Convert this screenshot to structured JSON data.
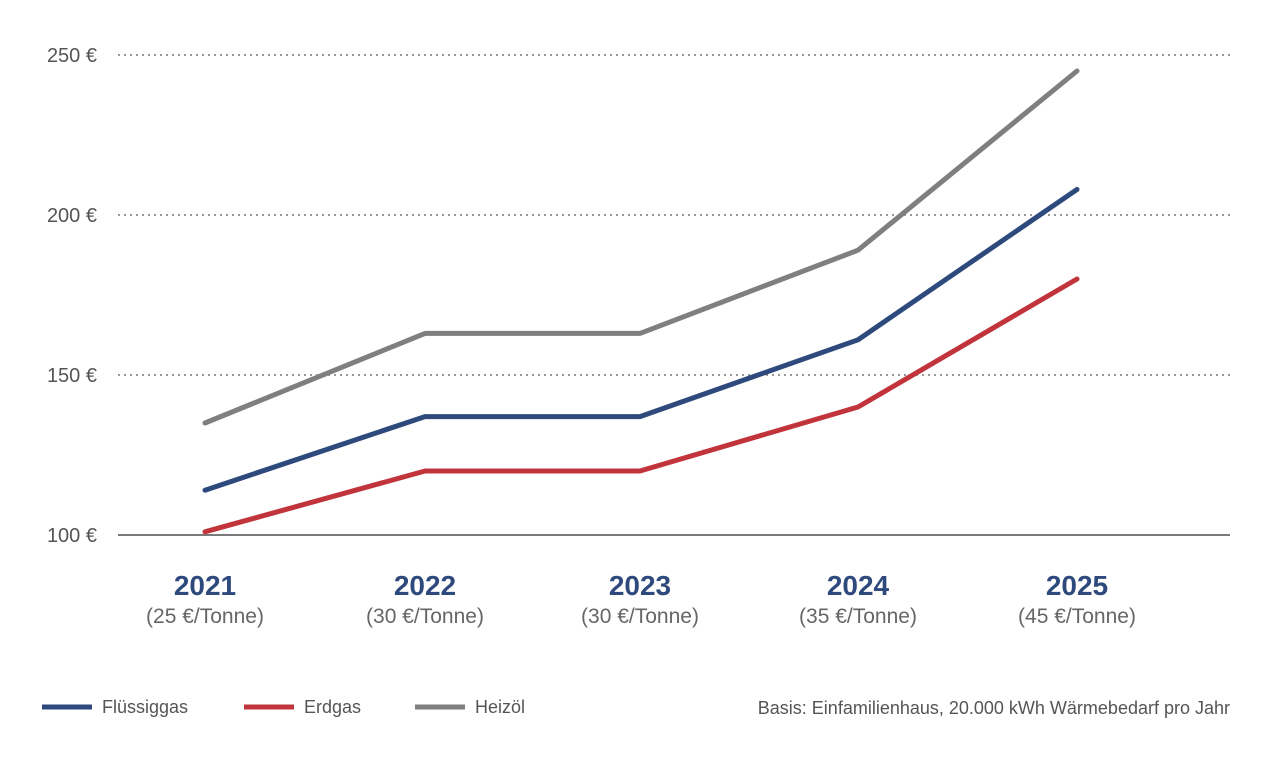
{
  "chart_data": {
    "type": "line",
    "title": "",
    "xlabel": "",
    "ylabel": "",
    "categories": [
      "2021",
      "2022",
      "2023",
      "2024",
      "2025"
    ],
    "category_sublabels": [
      "(25 €/Tonne)",
      "(30 €/Tonne)",
      "(30 €/Tonne)",
      "(35 €/Tonne)",
      "(45 €/Tonne)"
    ],
    "ylim": [
      100,
      250
    ],
    "yticks": [
      100,
      150,
      200,
      250
    ],
    "ytick_labels": [
      "100 €",
      "150 €",
      "200 €",
      "250 €"
    ],
    "grid": "horizontal dotted",
    "legend_position": "bottom-left",
    "series": [
      {
        "name": "Flüssiggas",
        "color": "#2e4a7c",
        "values": [
          114,
          137,
          137,
          161,
          208
        ]
      },
      {
        "name": "Erdgas",
        "color": "#c1343b",
        "values": [
          101,
          120,
          120,
          140,
          180
        ]
      },
      {
        "name": "Heizöl",
        "color": "#7f7f7f",
        "values": [
          135,
          163,
          163,
          189,
          245
        ]
      }
    ],
    "note": "Basis: Einfamilienhaus, 20.000 kWh Wärmebedarf pro Jahr"
  }
}
